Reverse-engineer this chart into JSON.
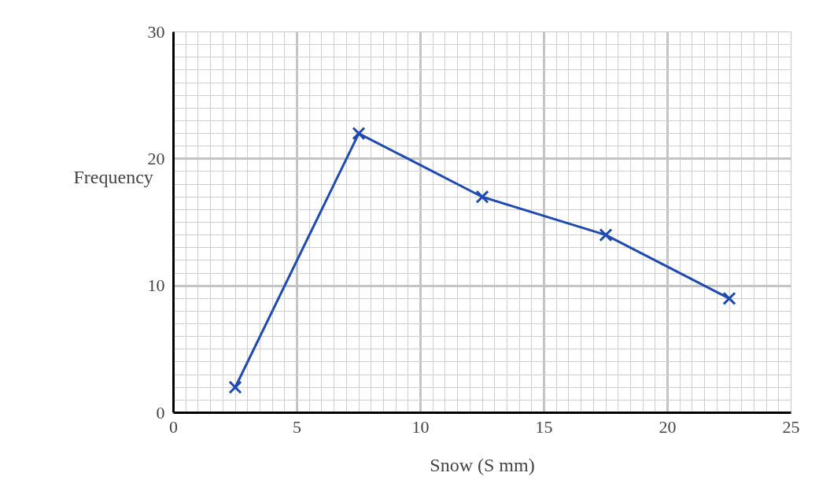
{
  "chart_data": {
    "type": "line",
    "xlabel": "Snow (S mm)",
    "ylabel": "Frequency",
    "x": [
      2.5,
      7.5,
      12.5,
      17.5,
      22.5
    ],
    "series": [
      {
        "color": "#1f4bb0",
        "values": [
          2,
          22,
          17,
          14,
          9
        ]
      }
    ],
    "xlim": [
      0,
      25
    ],
    "ylim": [
      0,
      30
    ],
    "xticks": [
      0,
      5,
      10,
      15,
      20,
      25
    ],
    "yticks": [
      0,
      10,
      20,
      30
    ],
    "grid": true,
    "marker": "cross",
    "line_style": "solid"
  }
}
